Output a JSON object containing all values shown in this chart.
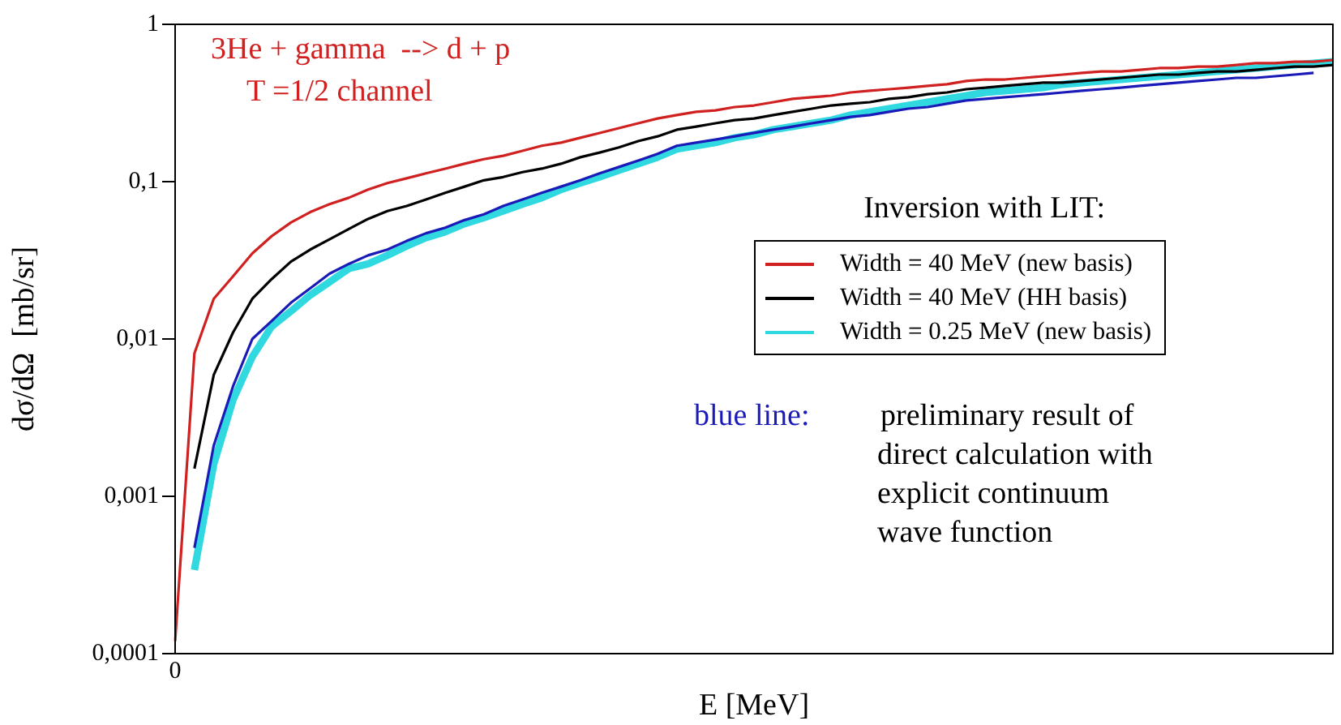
{
  "chart_data": {
    "type": "line",
    "xlabel": "E [MeV]",
    "ylabel": "dσ/dΩ  [mb/sr]",
    "log": "y",
    "legend": "right",
    "legend_title": "Inversion with LIT:",
    "marker": "none",
    "line_style": "solid",
    "ylim": [
      0.0001,
      1
    ],
    "yticks": [
      {
        "value": 0.0001,
        "label": "0,0001"
      },
      {
        "value": 0.001,
        "label": "0,001"
      },
      {
        "value": 0.01,
        "label": "0,01"
      },
      {
        "value": 0.1,
        "label": "0,1"
      },
      {
        "value": 1,
        "label": "1"
      }
    ],
    "categories": [
      "0",
      null,
      null,
      null,
      null,
      null,
      null,
      null,
      null,
      null,
      null,
      null,
      null,
      null,
      null,
      null,
      null,
      null,
      null,
      null,
      null,
      null,
      null,
      null,
      null,
      null,
      null,
      null,
      null,
      null,
      null,
      null,
      null,
      null,
      null,
      null,
      null,
      null,
      null,
      null,
      null,
      null,
      null,
      null,
      null,
      null,
      null,
      null,
      null,
      null,
      null,
      null,
      null,
      null,
      null,
      null,
      null,
      null,
      null,
      null,
      null
    ],
    "series": [
      {
        "name": "Width = 40 MeV (new basis)",
        "color": "#d02020",
        "values": [
          0.00012,
          0.0081,
          0.018,
          0.025,
          0.035,
          0.045,
          0.055,
          0.064,
          0.072,
          0.079,
          0.089,
          0.098,
          0.105,
          0.113,
          0.121,
          0.13,
          0.139,
          0.146,
          0.157,
          0.169,
          0.177,
          0.19,
          0.204,
          0.219,
          0.235,
          0.252,
          0.265,
          0.278,
          0.284,
          0.298,
          0.305,
          0.32,
          0.336,
          0.344,
          0.352,
          0.369,
          0.378,
          0.387,
          0.396,
          0.406,
          0.416,
          0.436,
          0.446,
          0.446,
          0.457,
          0.468,
          0.479,
          0.491,
          0.502,
          0.502,
          0.514,
          0.527,
          0.527,
          0.539,
          0.539,
          0.552,
          0.566,
          0.566,
          0.579,
          0.579,
          0.593
        ]
      },
      {
        "name": "Width = 40 MeV (HH basis)",
        "color": "#000000",
        "values": [
          null,
          0.0015,
          0.0059,
          0.011,
          0.018,
          0.024,
          0.031,
          0.037,
          0.043,
          0.05,
          0.058,
          0.065,
          0.07,
          0.077,
          0.085,
          0.093,
          0.102,
          0.107,
          0.115,
          0.121,
          0.13,
          0.143,
          0.153,
          0.165,
          0.181,
          0.194,
          0.214,
          0.224,
          0.235,
          0.246,
          0.252,
          0.265,
          0.278,
          0.291,
          0.305,
          0.313,
          0.32,
          0.336,
          0.344,
          0.36,
          0.369,
          0.387,
          0.396,
          0.406,
          0.416,
          0.426,
          0.426,
          0.436,
          0.446,
          0.457,
          0.468,
          0.479,
          0.479,
          0.491,
          0.502,
          0.502,
          0.514,
          0.527,
          0.539,
          0.539,
          0.552
        ]
      },
      {
        "color": "#1a1ab8",
        "values": [
          null,
          0.00047,
          0.0021,
          0.005,
          0.01,
          0.013,
          0.017,
          0.021,
          0.026,
          0.03,
          0.034,
          0.037,
          0.042,
          0.047,
          0.051,
          0.057,
          0.062,
          0.07,
          0.077,
          0.085,
          0.093,
          0.102,
          0.113,
          0.124,
          0.136,
          0.15,
          0.169,
          0.177,
          0.185,
          0.194,
          0.204,
          0.214,
          0.224,
          0.235,
          0.246,
          0.258,
          0.265,
          0.278,
          0.291,
          0.298,
          0.313,
          0.328,
          0.336,
          0.344,
          0.352,
          0.36,
          0.369,
          0.378,
          0.387,
          0.396,
          0.406,
          0.416,
          0.426,
          0.436,
          0.446,
          0.457,
          0.457,
          0.468,
          0.479,
          0.491,
          null
        ]
      },
      {
        "name": "Width = 0.25 MeV (new basis)",
        "color": "#30d8e0",
        "values": [
          null,
          0.00034,
          0.0016,
          0.0041,
          0.0077,
          0.012,
          0.015,
          0.019,
          0.023,
          0.028,
          0.03,
          0.034,
          0.039,
          0.044,
          0.048,
          0.054,
          0.059,
          0.065,
          0.072,
          0.079,
          0.089,
          0.098,
          0.107,
          0.118,
          0.13,
          0.143,
          0.161,
          0.169,
          0.177,
          0.19,
          0.199,
          0.214,
          0.224,
          0.235,
          0.246,
          0.265,
          0.278,
          0.291,
          0.305,
          0.32,
          0.336,
          0.352,
          0.369,
          0.378,
          0.387,
          0.396,
          0.416,
          0.426,
          0.436,
          0.446,
          0.457,
          0.468,
          0.479,
          0.491,
          0.502,
          0.514,
          0.527,
          0.539,
          0.552,
          0.566,
          0.579
        ]
      }
    ],
    "annotations": [
      "3He + gamma  --> d + p",
      "T =1/2 channel",
      "blue line:",
      "preliminary result of",
      "direct calculation with",
      "explicit continuum",
      "wave function"
    ]
  }
}
